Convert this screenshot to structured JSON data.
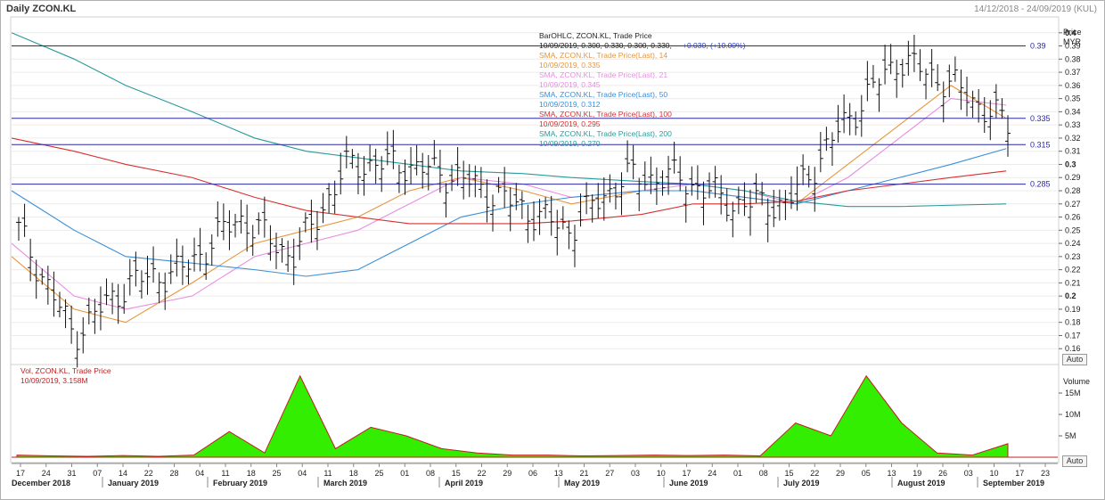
{
  "header": {
    "title": "Daily ZCON.KL",
    "date_range": "14/12/2018 - 24/09/2019 (KUL)"
  },
  "buttons": {
    "auto_price": "Auto",
    "auto_volume": "Auto"
  },
  "price_axis": {
    "title": "Price",
    "unit": "MYR",
    "ticks": [
      "0.4",
      "0.39",
      "0.38",
      "0.37",
      "0.36",
      "0.35",
      "0.34",
      "0.33",
      "0.32",
      "0.31",
      "0.3",
      "0.29",
      "0.28",
      "0.27",
      "0.26",
      "0.25",
      "0.24",
      "0.23",
      "0.22",
      "0.21",
      "0.2",
      "0.19",
      "0.18",
      "0.17",
      "0.16"
    ]
  },
  "volume_axis": {
    "title": "Volume",
    "ticks": [
      "15M",
      "10M",
      "5M"
    ]
  },
  "legend": {
    "bar": {
      "l1": "BarOHLC, ZCON.KL, Trade Price",
      "l2a": "10/09/2019, 0.300, 0.330, 0.300, 0.330,",
      "l2b": "+0.030, (+10.00%)"
    },
    "sma14": {
      "l1": "SMA, ZCON.KL, Trade Price(Last), 14",
      "l2": "10/09/2019, 0.335",
      "color": "#e8963c"
    },
    "sma21": {
      "l1": "SMA, ZCON.KL, Trade Price(Last), 21",
      "l2": "10/09/2019, 0.345",
      "color": "#e88ee0"
    },
    "sma50": {
      "l1": "SMA, ZCON.KL, Trade Price(Last), 50",
      "l2": "10/09/2019, 0.312",
      "color": "#3a8fd8"
    },
    "sma100": {
      "l1": "SMA, ZCON.KL, Trade Price(Last), 100",
      "l2": "10/09/2019, 0.295",
      "color": "#d83030"
    },
    "sma200": {
      "l1": "SMA, ZCON.KL, Trade Price(Last), 200",
      "l2": "10/09/2019, 0.270",
      "color": "#2a9a9a"
    }
  },
  "volume_legend": {
    "l1": "Vol, ZCON.KL, Trade Price",
    "l2": "10/09/2019, 3.158M"
  },
  "hlines": [
    {
      "value": 0.39,
      "label": "0.39"
    },
    {
      "value": 0.335,
      "label": "0.335"
    },
    {
      "value": 0.315,
      "label": "0.315"
    },
    {
      "value": 0.285,
      "label": "0.285"
    }
  ],
  "x_axis": {
    "days": [
      "17",
      "24",
      "31",
      "07",
      "14",
      "22",
      "28",
      "04",
      "11",
      "18",
      "25",
      "04",
      "11",
      "18",
      "25",
      "01",
      "08",
      "15",
      "22",
      "29",
      "06",
      "13",
      "21",
      "27",
      "03",
      "10",
      "17",
      "24",
      "01",
      "08",
      "15",
      "22",
      "29",
      "05",
      "13",
      "19",
      "26",
      "03",
      "10",
      "17",
      "23"
    ],
    "months": [
      "December 2018",
      "January 2019",
      "February 2019",
      "March 2019",
      "April 2019",
      "May 2019",
      "June 2019",
      "July 2019",
      "August 2019",
      "September 2019"
    ]
  },
  "chart_data": {
    "type": "line",
    "title": "Daily ZCON.KL",
    "xlabel": "",
    "ylabel": "Price MYR",
    "ylim": [
      0.15,
      0.41
    ],
    "x": [
      "2018-12-14",
      "2018-12-31",
      "2019-01-14",
      "2019-02-01",
      "2019-02-18",
      "2019-03-04",
      "2019-03-18",
      "2019-04-01",
      "2019-04-15",
      "2019-05-02",
      "2019-05-15",
      "2019-06-03",
      "2019-06-17",
      "2019-07-01",
      "2019-07-15",
      "2019-07-29",
      "2019-08-12",
      "2019-08-26",
      "2019-09-10"
    ],
    "series": [
      {
        "name": "BarOHLC, ZCON.KL, Trade Price",
        "values": [
          0.25,
          0.17,
          0.21,
          0.22,
          0.26,
          0.23,
          0.3,
          0.3,
          0.29,
          0.27,
          0.25,
          0.29,
          0.29,
          0.27,
          0.27,
          0.33,
          0.38,
          0.36,
          0.33
        ]
      },
      {
        "name": "SMA, ZCON.KL, Trade Price(Last), 14",
        "values": [
          0.23,
          0.19,
          0.18,
          0.21,
          0.24,
          0.25,
          0.26,
          0.28,
          0.29,
          0.28,
          0.27,
          0.28,
          0.28,
          0.275,
          0.27,
          0.3,
          0.33,
          0.36,
          0.335
        ]
      },
      {
        "name": "SMA, ZCON.KL, Trade Price(Last), 21",
        "values": [
          0.24,
          0.2,
          0.19,
          0.2,
          0.23,
          0.24,
          0.25,
          0.27,
          0.29,
          0.285,
          0.275,
          0.28,
          0.285,
          0.28,
          0.27,
          0.29,
          0.32,
          0.35,
          0.345
        ]
      },
      {
        "name": "SMA, ZCON.KL, Trade Price(Last), 50",
        "values": [
          0.28,
          0.25,
          0.23,
          0.225,
          0.22,
          0.215,
          0.22,
          0.24,
          0.26,
          0.27,
          0.275,
          0.28,
          0.28,
          0.275,
          0.27,
          0.28,
          0.29,
          0.3,
          0.312
        ]
      },
      {
        "name": "SMA, ZCON.KL, Trade Price(Last), 100",
        "values": [
          0.32,
          0.31,
          0.3,
          0.29,
          0.275,
          0.265,
          0.26,
          0.255,
          0.255,
          0.255,
          0.257,
          0.262,
          0.27,
          0.27,
          0.272,
          0.28,
          0.285,
          0.29,
          0.295
        ]
      },
      {
        "name": "SMA, ZCON.KL, Trade Price(Last), 200",
        "values": [
          0.4,
          0.38,
          0.36,
          0.34,
          0.32,
          0.31,
          0.305,
          0.3,
          0.295,
          0.293,
          0.29,
          0.287,
          0.285,
          0.28,
          0.272,
          0.268,
          0.268,
          0.269,
          0.27
        ]
      }
    ],
    "volume": {
      "name": "Vol, ZCON.KL, Trade Price",
      "ylim": [
        0,
        20
      ],
      "unit": "M",
      "values": [
        0.5,
        0.3,
        0.2,
        0.4,
        0.2,
        0.5,
        6,
        1,
        19,
        2,
        7,
        5,
        2,
        1,
        0.5,
        0.5,
        0.3,
        0.4,
        0.5,
        0.4,
        0.5,
        0.3,
        8,
        5,
        19,
        8,
        1,
        0.5,
        3.158
      ]
    }
  }
}
